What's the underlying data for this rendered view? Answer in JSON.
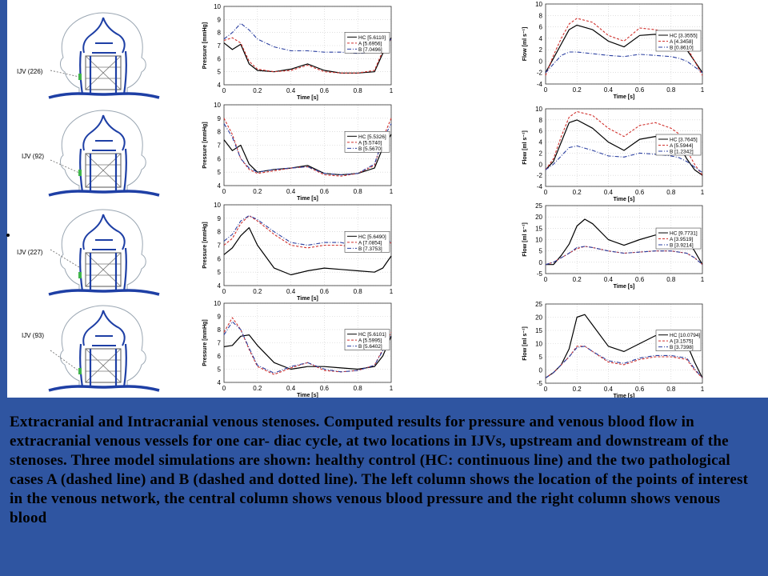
{
  "caption": "Extracranial and Intracranial venous stenoses. Computed results for pressure and venous blood flow in extracranial venous vessels for one car- diac cycle, at two locations in IJVs, upstream and downstream of the stenoses. Three model simulations are shown: healthy control (HC: continuous line) and the two pathological cases A (dashed line) and B (dashed and dotted line). The left column shows the location of the points of interest in the venous network, the central column shows venous blood pressure and the right column shows venous blood",
  "colors": {
    "background": "#2f55a1",
    "HC": "#000000",
    "A": "#d0312d",
    "B": "#2a3fa0",
    "vessel": "#1e3fa5"
  },
  "locations": [
    {
      "label": "IJV (226)"
    },
    {
      "label": "IJV (92)"
    },
    {
      "label": "IJV (227)"
    },
    {
      "label": "IJV (93)"
    }
  ],
  "chart_data": [
    {
      "type": "line",
      "xlabel": "Time [s]",
      "ylabel": "Pressure [mmHg]",
      "xlim": [
        0,
        1
      ],
      "ylim": [
        4,
        10
      ],
      "xticks": [
        "0",
        "0.2",
        "0.4",
        "0.6",
        "0.8",
        "1"
      ],
      "yticks": [
        "4",
        "5",
        "6",
        "7",
        "8",
        "9",
        "10"
      ],
      "x": [
        0,
        0.05,
        0.1,
        0.15,
        0.2,
        0.3,
        0.4,
        0.5,
        0.6,
        0.7,
        0.8,
        0.9,
        0.95,
        1
      ],
      "series": [
        {
          "name": "HC",
          "legend": "HC [5.6110]",
          "values": [
            7.2,
            6.7,
            7.1,
            5.6,
            5.1,
            5.0,
            5.2,
            5.6,
            5.1,
            4.9,
            4.9,
            5.0,
            6.4,
            7.6
          ]
        },
        {
          "name": "A",
          "legend": "A [5.6956]",
          "values": [
            7.4,
            7.6,
            7.2,
            5.8,
            5.2,
            5.0,
            5.1,
            5.5,
            5.0,
            4.9,
            4.9,
            5.1,
            6.6,
            7.5
          ]
        },
        {
          "name": "B",
          "legend": "B [7.0496]",
          "values": [
            7.5,
            8.0,
            8.7,
            8.2,
            7.5,
            6.9,
            6.6,
            6.6,
            6.5,
            6.5,
            6.4,
            6.5,
            7.0,
            7.5
          ]
        }
      ]
    },
    {
      "type": "line",
      "xlabel": "Time [s]",
      "ylabel": "Flow [ml s⁻¹]",
      "xlim": [
        0,
        1
      ],
      "ylim": [
        -4,
        10
      ],
      "xticks": [
        "0",
        "0.2",
        "0.4",
        "0.6",
        "0.8",
        "1"
      ],
      "yticks": [
        "-4",
        "-2",
        "0",
        "2",
        "4",
        "6",
        "8",
        "10"
      ],
      "x": [
        0,
        0.05,
        0.1,
        0.15,
        0.2,
        0.3,
        0.4,
        0.5,
        0.6,
        0.7,
        0.8,
        0.85,
        0.9,
        0.95,
        1
      ],
      "series": [
        {
          "name": "HC",
          "legend": "HC [3.3555]",
          "values": [
            -2,
            0.5,
            3,
            5.5,
            6.3,
            5.5,
            3.5,
            2.5,
            4.5,
            4.7,
            4.0,
            3.5,
            2.0,
            0,
            -2
          ]
        },
        {
          "name": "A",
          "legend": "A [4.3458]",
          "values": [
            -2.5,
            1,
            4,
            6.5,
            7.5,
            6.8,
            4.5,
            3.5,
            5.8,
            5.5,
            4.8,
            4.0,
            2.5,
            0,
            -2.5
          ]
        },
        {
          "name": "B",
          "legend": "B [0.8610]",
          "values": [
            -2,
            -0.5,
            1,
            1.6,
            1.6,
            1.3,
            1.0,
            0.8,
            1.2,
            1.0,
            0.8,
            0.5,
            0,
            -1,
            -2
          ]
        }
      ]
    },
    {
      "type": "line",
      "xlabel": "Time [s]",
      "ylabel": "Pressure [mmHg]",
      "xlim": [
        0,
        1
      ],
      "ylim": [
        4,
        10
      ],
      "xticks": [
        "0",
        "0.2",
        "0.4",
        "0.6",
        "0.8",
        "1"
      ],
      "yticks": [
        "4",
        "5",
        "6",
        "7",
        "8",
        "9",
        "10"
      ],
      "x": [
        0,
        0.05,
        0.1,
        0.15,
        0.2,
        0.3,
        0.4,
        0.5,
        0.6,
        0.7,
        0.8,
        0.9,
        0.95,
        1
      ],
      "series": [
        {
          "name": "HC",
          "legend": "HC [5.5326]",
          "values": [
            7.4,
            6.6,
            7.0,
            5.6,
            5.0,
            5.2,
            5.3,
            5.5,
            4.9,
            4.8,
            4.9,
            5.3,
            6.8,
            7.8
          ]
        },
        {
          "name": "A",
          "legend": "A [5.5740]",
          "values": [
            9.0,
            7.8,
            6.0,
            5.2,
            4.9,
            5.1,
            5.3,
            5.4,
            4.8,
            4.7,
            4.9,
            5.5,
            7.5,
            9.0
          ]
        },
        {
          "name": "B",
          "legend": "B [5.5670]",
          "values": [
            8.6,
            7.6,
            6.0,
            5.3,
            5.0,
            5.2,
            5.3,
            5.4,
            4.9,
            4.8,
            4.9,
            5.6,
            7.4,
            8.6
          ]
        }
      ]
    },
    {
      "type": "line",
      "xlabel": "Time [s]",
      "ylabel": "Flow [ml s⁻¹]",
      "xlim": [
        0,
        1
      ],
      "ylim": [
        -4,
        10
      ],
      "xticks": [
        "0",
        "0.2",
        "0.4",
        "0.6",
        "0.8",
        "1"
      ],
      "yticks": [
        "-4",
        "-2",
        "0",
        "2",
        "4",
        "6",
        "8",
        "10"
      ],
      "x": [
        0,
        0.05,
        0.1,
        0.15,
        0.2,
        0.3,
        0.4,
        0.5,
        0.6,
        0.7,
        0.8,
        0.85,
        0.9,
        0.95,
        1
      ],
      "series": [
        {
          "name": "HC",
          "legend": "HC [3.7645]",
          "values": [
            -1,
            0.5,
            4,
            7.5,
            8.0,
            6.5,
            4.0,
            2.5,
            4.5,
            5.0,
            4.5,
            3.5,
            1.0,
            -1,
            -2
          ]
        },
        {
          "name": "A",
          "legend": "A [5.5944]",
          "values": [
            -1,
            1,
            5,
            8.5,
            9.5,
            8.8,
            6.5,
            5.0,
            7.0,
            7.5,
            6.5,
            5.5,
            2.5,
            0,
            -2
          ]
        },
        {
          "name": "B",
          "legend": "B [1.2342]",
          "values": [
            -1,
            0,
            1.5,
            3.0,
            3.3,
            2.5,
            1.5,
            1.3,
            2.0,
            1.8,
            1.5,
            1.2,
            0.5,
            -0.5,
            -1.5
          ]
        }
      ]
    },
    {
      "type": "line",
      "xlabel": "Time [s]",
      "ylabel": "Pressure [mmHg]",
      "xlim": [
        0,
        1
      ],
      "ylim": [
        4,
        10
      ],
      "xticks": [
        "0",
        "0.2",
        "0.4",
        "0.6",
        "0.8",
        "1"
      ],
      "yticks": [
        "4",
        "5",
        "6",
        "7",
        "8",
        "9",
        "10"
      ],
      "x": [
        0,
        0.05,
        0.1,
        0.15,
        0.2,
        0.3,
        0.4,
        0.5,
        0.6,
        0.7,
        0.8,
        0.9,
        0.95,
        1
      ],
      "series": [
        {
          "name": "HC",
          "legend": "HC [5.6490]",
          "values": [
            6.3,
            6.8,
            7.7,
            8.3,
            7.0,
            5.3,
            4.8,
            5.1,
            5.3,
            5.2,
            5.1,
            5.0,
            5.3,
            6.2
          ]
        },
        {
          "name": "A",
          "legend": "A [7.0854]",
          "values": [
            7.0,
            7.5,
            8.6,
            9.2,
            8.8,
            7.8,
            7.0,
            6.8,
            7.0,
            7.0,
            6.8,
            6.7,
            6.8,
            7.2
          ]
        },
        {
          "name": "B",
          "legend": "B [7.3753]",
          "values": [
            7.3,
            7.8,
            8.8,
            9.2,
            8.9,
            8.0,
            7.2,
            7.0,
            7.2,
            7.2,
            6.9,
            6.8,
            7.0,
            7.3
          ]
        }
      ]
    },
    {
      "type": "line",
      "xlabel": "Time [s]",
      "ylabel": "Flow [ml s⁻¹]",
      "xlim": [
        0,
        1
      ],
      "ylim": [
        -5,
        25
      ],
      "xticks": [
        "0",
        "0.2",
        "0.4",
        "0.6",
        "0.8",
        "1"
      ],
      "yticks": [
        "-5",
        "0",
        "5",
        "10",
        "15",
        "20",
        "25"
      ],
      "x": [
        0,
        0.05,
        0.1,
        0.15,
        0.2,
        0.25,
        0.3,
        0.4,
        0.5,
        0.6,
        0.7,
        0.8,
        0.9,
        0.95,
        1
      ],
      "series": [
        {
          "name": "HC",
          "legend": "HC [9.7731]",
          "values": [
            -1,
            -1,
            3,
            8,
            16,
            19,
            17,
            10,
            7.5,
            10,
            12,
            12,
            10,
            5,
            -1
          ]
        },
        {
          "name": "A",
          "legend": "A [3.9519]",
          "values": [
            -1,
            0,
            2,
            4,
            6,
            7,
            6.5,
            5,
            4,
            4.5,
            5,
            5,
            4,
            2,
            -1
          ]
        },
        {
          "name": "B",
          "legend": "B [3.9214]",
          "values": [
            -1,
            0,
            2,
            4,
            6.5,
            7,
            6.5,
            5,
            4,
            4.5,
            5,
            5,
            4,
            2,
            -1
          ]
        }
      ]
    },
    {
      "type": "line",
      "xlabel": "Time [s]",
      "ylabel": "Pressure [mmHg]",
      "xlim": [
        0,
        1
      ],
      "ylim": [
        4,
        10
      ],
      "xticks": [
        "0",
        "0.2",
        "0.4",
        "0.6",
        "0.8",
        "1"
      ],
      "yticks": [
        "4",
        "5",
        "6",
        "7",
        "8",
        "9",
        "10"
      ],
      "x": [
        0,
        0.05,
        0.1,
        0.15,
        0.2,
        0.3,
        0.4,
        0.5,
        0.6,
        0.7,
        0.8,
        0.9,
        0.95,
        1
      ],
      "series": [
        {
          "name": "HC",
          "legend": "HC [5.6101]",
          "values": [
            6.7,
            6.8,
            7.5,
            7.6,
            6.8,
            5.5,
            5.0,
            5.2,
            5.2,
            5.1,
            5.0,
            5.2,
            6.0,
            7.5
          ]
        },
        {
          "name": "A",
          "legend": "A [5.5995]",
          "values": [
            7.8,
            8.9,
            8.0,
            6.5,
            5.2,
            4.6,
            5.1,
            5.5,
            4.9,
            4.8,
            4.9,
            5.3,
            6.5,
            7.8
          ]
        },
        {
          "name": "B",
          "legend": "B [5.6402]",
          "values": [
            7.6,
            8.6,
            8.0,
            6.6,
            5.3,
            4.7,
            5.2,
            5.5,
            5.0,
            4.8,
            4.9,
            5.3,
            6.4,
            7.6
          ]
        }
      ]
    },
    {
      "type": "line",
      "xlabel": "Time [s]",
      "ylabel": "Flow [ml s⁻¹]",
      "xlim": [
        0,
        1
      ],
      "ylim": [
        -5,
        25
      ],
      "xticks": [
        "0",
        "0.2",
        "0.4",
        "0.6",
        "0.8",
        "1"
      ],
      "yticks": [
        "-5",
        "0",
        "5",
        "10",
        "15",
        "20",
        "25"
      ],
      "x": [
        0,
        0.05,
        0.1,
        0.15,
        0.2,
        0.25,
        0.3,
        0.4,
        0.5,
        0.6,
        0.7,
        0.8,
        0.9,
        0.95,
        1
      ],
      "series": [
        {
          "name": "HC",
          "legend": "HC [10.0794]",
          "values": [
            -3,
            -1,
            2,
            8,
            20,
            21,
            17,
            9,
            7,
            10,
            13,
            13,
            10,
            3,
            -3
          ]
        },
        {
          "name": "A",
          "legend": "A [3.1575]",
          "values": [
            -3,
            -1,
            2,
            5,
            9,
            9,
            7,
            3,
            2,
            4,
            5,
            5,
            4,
            0,
            -3
          ]
        },
        {
          "name": "B",
          "legend": "B [3.7398]",
          "values": [
            -3,
            -1,
            2,
            5,
            8.5,
            9,
            7,
            3.5,
            2.5,
            4.5,
            5.5,
            5.5,
            4.5,
            0.5,
            -3
          ]
        }
      ]
    }
  ]
}
